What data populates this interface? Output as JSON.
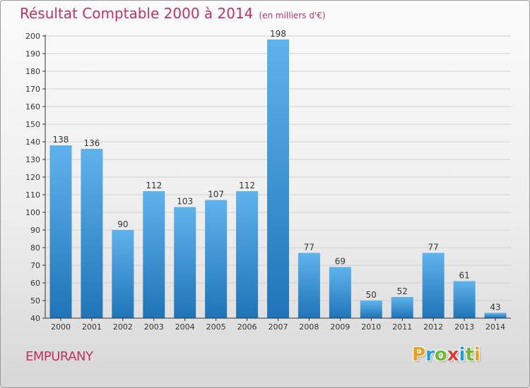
{
  "header": {
    "title": "Résultat Comptable 2000 à 2014",
    "unit": "(en milliers d'€)"
  },
  "footer": {
    "commune": "EMPURANY",
    "brand_letters": [
      "P",
      "r",
      "o",
      "x",
      "i",
      "t",
      "i"
    ],
    "brand_colors": [
      "#e8a021",
      "#1e9fd8",
      "#6fb82f",
      "#e23a37",
      "#1e9fd8",
      "#6fb82f",
      "#e8a021"
    ]
  },
  "colors": {
    "title": "#c0335e",
    "bar_top": "#5fb3ec",
    "bar_bottom": "#1f74b8",
    "axis": "#333333",
    "grid": "#d0d0d0"
  },
  "chart_data": {
    "type": "bar",
    "categories": [
      "2000",
      "2001",
      "2002",
      "2003",
      "2004",
      "2005",
      "2006",
      "2007",
      "2008",
      "2009",
      "2010",
      "2011",
      "2012",
      "2013",
      "2014"
    ],
    "values": [
      138,
      136,
      90,
      112,
      103,
      107,
      112,
      198,
      77,
      69,
      50,
      52,
      77,
      61,
      43
    ],
    "ylim": [
      40,
      200
    ],
    "yticks": [
      40,
      50,
      60,
      70,
      80,
      90,
      100,
      110,
      120,
      130,
      140,
      150,
      160,
      170,
      180,
      190,
      200
    ],
    "grid": true,
    "data_labels": true
  }
}
